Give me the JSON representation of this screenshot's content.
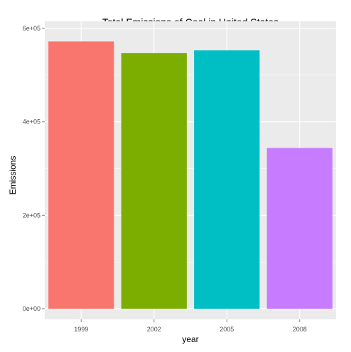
{
  "chart_data": {
    "type": "bar",
    "title": "Total Emissions of Coal in United States",
    "xlabel": "year",
    "ylabel": "Emissions",
    "categories": [
      "1999",
      "2002",
      "2005",
      "2008"
    ],
    "values": [
      572000,
      547000,
      553000,
      344000
    ],
    "ylim": [
      0,
      600000
    ],
    "yticks": [
      0,
      200000,
      400000,
      600000
    ],
    "ytick_labels": [
      "0e+00",
      "2e+05",
      "4e+05",
      "6e+05"
    ],
    "grid": true,
    "legend": "none",
    "colors": [
      "#F8766D",
      "#7CAE00",
      "#00BFC4",
      "#C77CFF"
    ],
    "panel_background": "#EBEBEB",
    "grid_color": "#FFFFFF"
  }
}
